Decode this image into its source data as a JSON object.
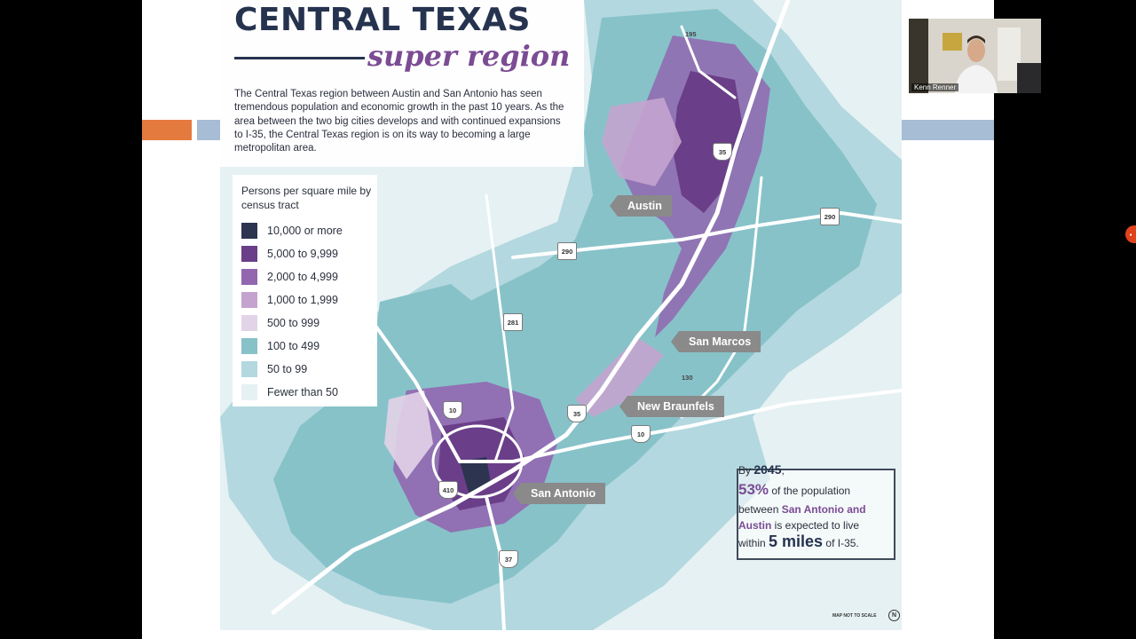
{
  "colors": {
    "orange_bar": "#e57a3e",
    "blue_bar": "#a7bcd5",
    "title_navy": "#26334f",
    "accent_purple": "#7b4c93",
    "city_label_gray": "#8a8a8a"
  },
  "map": {
    "title": "CENTRAL TEXAS",
    "subtitle": "super region",
    "intro": "The Central Texas region between Austin and San Antonio has seen tremendous population and economic growth in the past 10 years. As the area between the two big cities develops and with continued expansions to I-35, the Central Texas region is on its way to becoming a large metropolitan area.",
    "legend": {
      "title": "Persons per square mile by census tract",
      "items": [
        {
          "label": "10,000 or more",
          "color": "#2d3450"
        },
        {
          "label": "5,000 to 9,999",
          "color": "#6a3e88"
        },
        {
          "label": "2,000 to 4,999",
          "color": "#9267b0"
        },
        {
          "label": "1,000 to 1,999",
          "color": "#c4a4cf"
        },
        {
          "label": "500 to 999",
          "color": "#e3d3e8"
        },
        {
          "label": "100 to 499",
          "color": "#87c2c9"
        },
        {
          "label": "50 to 99",
          "color": "#b3d8df"
        },
        {
          "label": "Fewer than 50",
          "color": "#e6f1f3"
        }
      ]
    },
    "cities": {
      "austin": "Austin",
      "san_marcos": "San Marcos",
      "new_braunfels": "New Braunfels",
      "san_antonio": "San Antonio"
    },
    "highways": {
      "i35_north": "35",
      "i35_mid": "35",
      "i10_west": "10",
      "i10_east": "10",
      "i410": "410",
      "i37": "37",
      "us290_west": "290",
      "us290_east": "290",
      "us281": "281",
      "sh130": "130",
      "hwy195": "195"
    },
    "callout": {
      "line1_prefix": "By ",
      "line1_year": "2045",
      "line1_suffix": ",",
      "line2_pct": "53%",
      "line2_text": " of the population",
      "line3_prefix": "between ",
      "line3_city": "San Antonio and",
      "line4_city": "Austin",
      "line4_text": " is expected to live",
      "line5_prefix": "within ",
      "line5_miles": "5 miles",
      "line5_suffix": " of I-35."
    },
    "footer_note": "MAP NOT TO SCALE",
    "north_symbol": "N"
  },
  "video_participant": {
    "name": "Kenn Renner"
  },
  "side_button_icon": "tab-icon"
}
